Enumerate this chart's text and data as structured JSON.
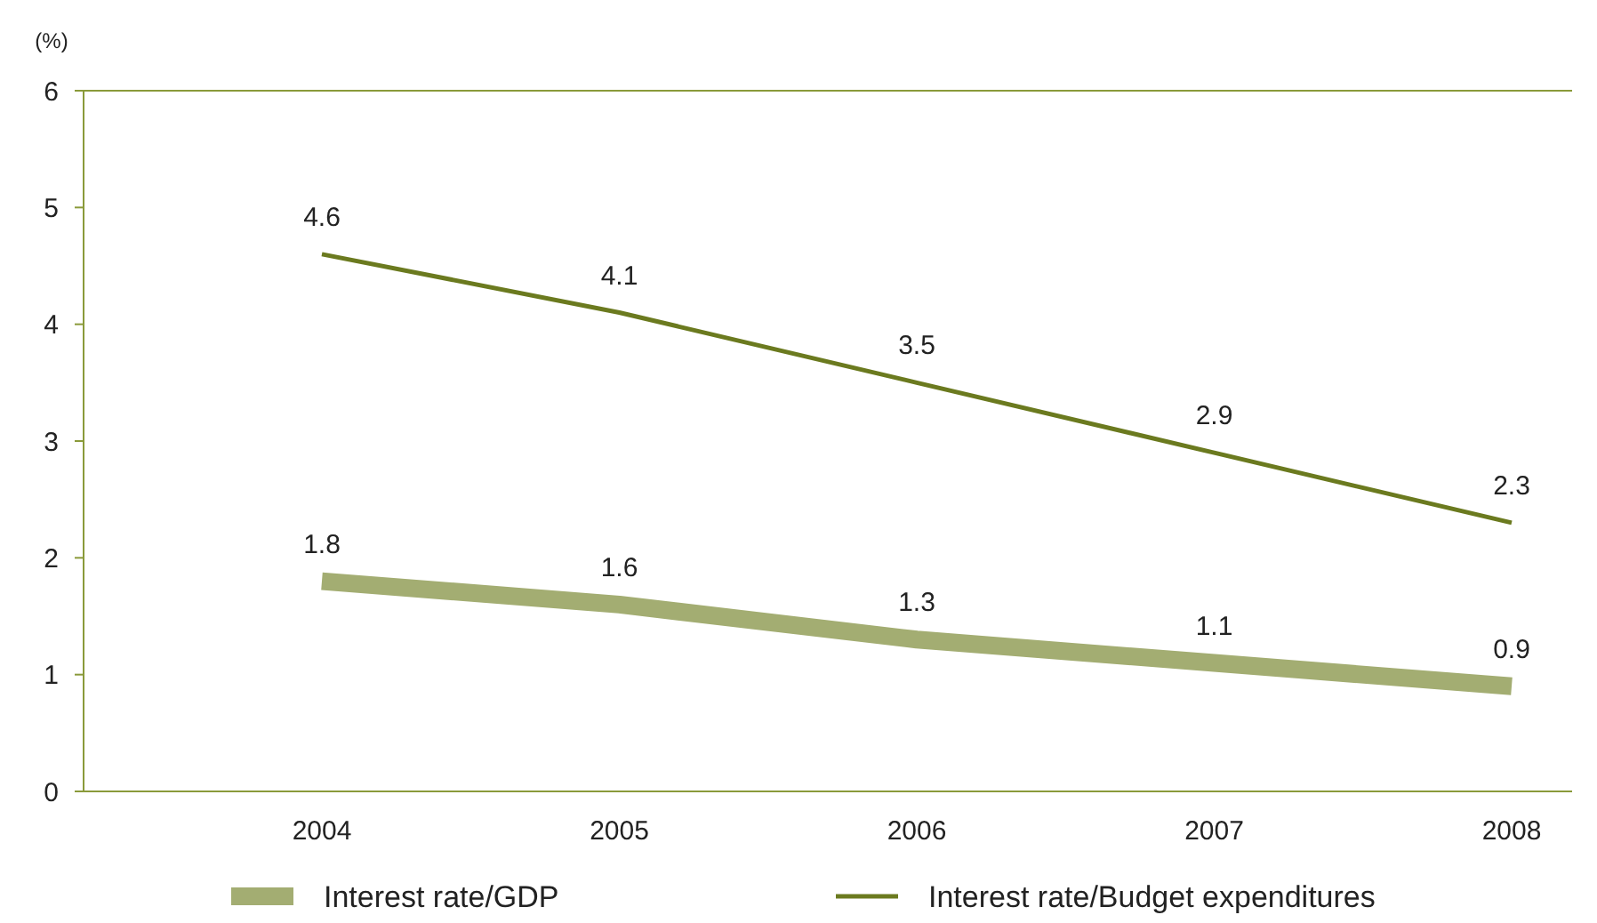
{
  "chart_data": {
    "type": "line",
    "ylabel": "(%)",
    "categories": [
      "2004",
      "2005",
      "2006",
      "2007",
      "2008"
    ],
    "series": [
      {
        "name": "Interest rate/GDP",
        "color": "#a3ad72",
        "values": [
          1.8,
          1.6,
          1.3,
          1.1,
          0.9
        ]
      },
      {
        "name": "Interest rate/Budget expenditures",
        "color": "#6b7a1f",
        "values": [
          4.6,
          4.1,
          3.5,
          2.9,
          2.3
        ]
      }
    ],
    "ylim": [
      0,
      6
    ],
    "yticks": [
      0,
      1,
      2,
      3,
      4,
      5,
      6
    ],
    "grid": false,
    "legend": "bottom",
    "data_labels": true,
    "marker": "none",
    "line_style": "solid"
  }
}
